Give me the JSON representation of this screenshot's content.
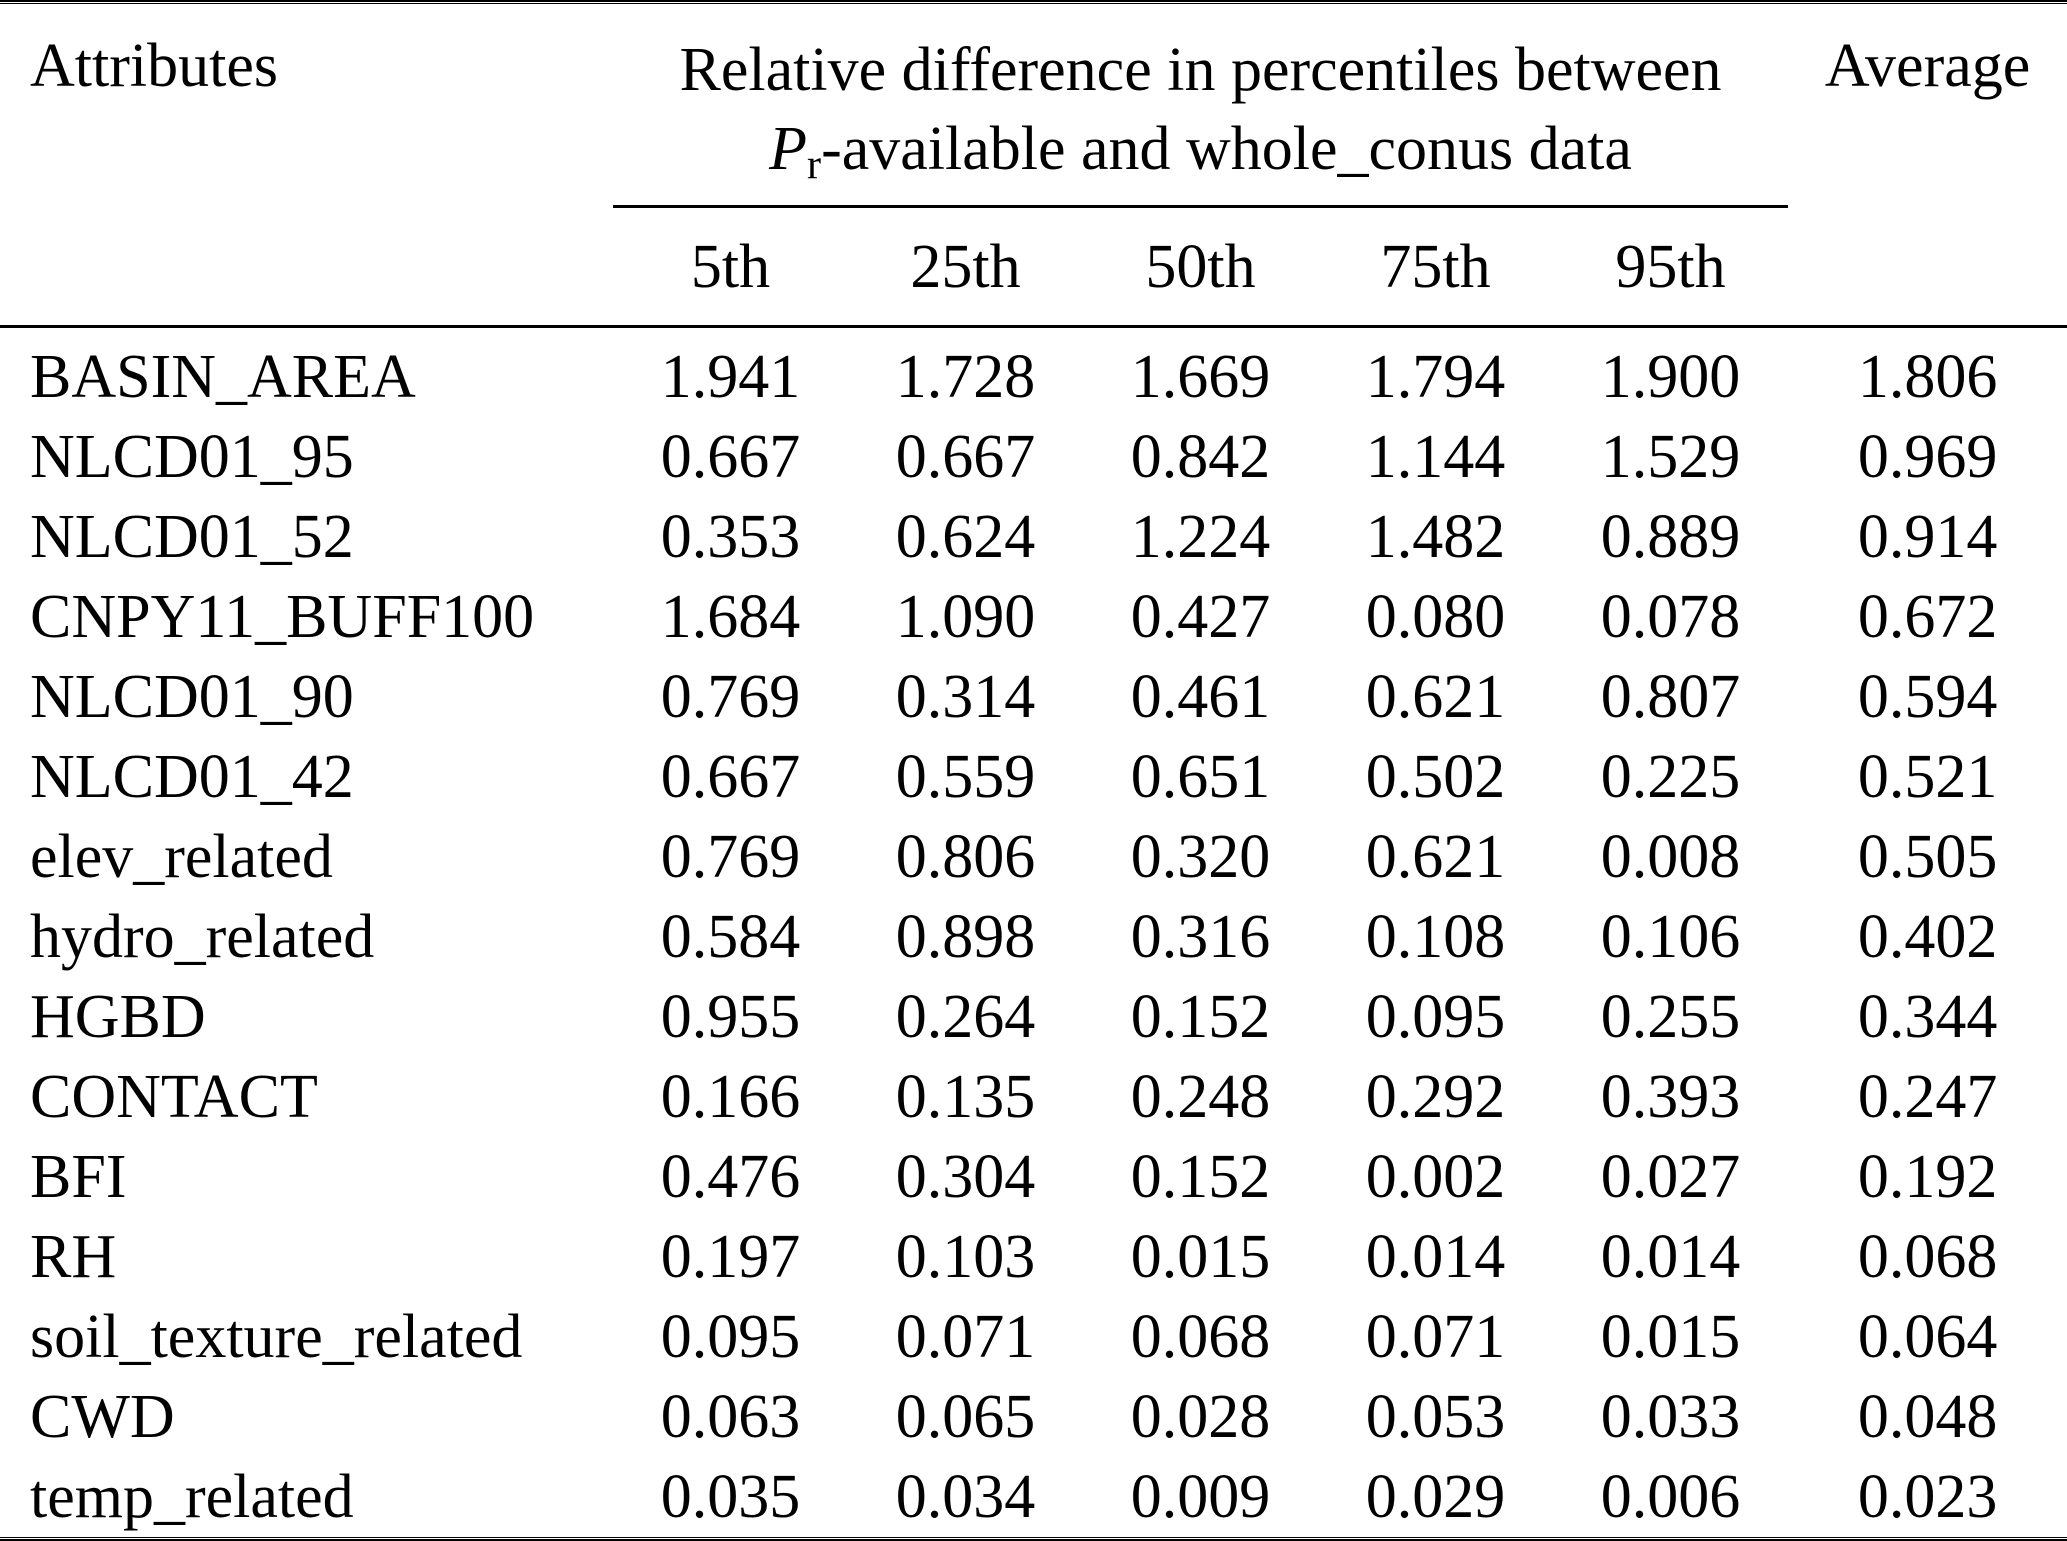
{
  "table": {
    "type": "table",
    "attributes_header": "Attributes",
    "span_header": {
      "line1": "Relative difference in percentiles between",
      "line2_var": "P",
      "line2_sub": "r",
      "line2_rest": "-available and whole_conus data"
    },
    "average_header": "Average",
    "percentile_headers": [
      "5th",
      "25th",
      "50th",
      "75th",
      "95th"
    ],
    "rows": [
      {
        "attribute": "BASIN_AREA",
        "values": [
          "1.941",
          "1.728",
          "1.669",
          "1.794",
          "1.900"
        ],
        "average": "1.806"
      },
      {
        "attribute": "NLCD01_95",
        "values": [
          "0.667",
          "0.667",
          "0.842",
          "1.144",
          "1.529"
        ],
        "average": "0.969"
      },
      {
        "attribute": "NLCD01_52",
        "values": [
          "0.353",
          "0.624",
          "1.224",
          "1.482",
          "0.889"
        ],
        "average": "0.914"
      },
      {
        "attribute": "CNPY11_BUFF100",
        "values": [
          "1.684",
          "1.090",
          "0.427",
          "0.080",
          "0.078"
        ],
        "average": "0.672"
      },
      {
        "attribute": "NLCD01_90",
        "values": [
          "0.769",
          "0.314",
          "0.461",
          "0.621",
          "0.807"
        ],
        "average": "0.594"
      },
      {
        "attribute": "NLCD01_42",
        "values": [
          "0.667",
          "0.559",
          "0.651",
          "0.502",
          "0.225"
        ],
        "average": "0.521"
      },
      {
        "attribute": "elev_related",
        "values": [
          "0.769",
          "0.806",
          "0.320",
          "0.621",
          "0.008"
        ],
        "average": "0.505"
      },
      {
        "attribute": "hydro_related",
        "values": [
          "0.584",
          "0.898",
          "0.316",
          "0.108",
          "0.106"
        ],
        "average": "0.402"
      },
      {
        "attribute": "HGBD",
        "values": [
          "0.955",
          "0.264",
          "0.152",
          "0.095",
          "0.255"
        ],
        "average": "0.344"
      },
      {
        "attribute": "CONTACT",
        "values": [
          "0.166",
          "0.135",
          "0.248",
          "0.292",
          "0.393"
        ],
        "average": "0.247"
      },
      {
        "attribute": "BFI",
        "values": [
          "0.476",
          "0.304",
          "0.152",
          "0.002",
          "0.027"
        ],
        "average": "0.192"
      },
      {
        "attribute": "RH",
        "values": [
          "0.197",
          "0.103",
          "0.015",
          "0.014",
          "0.014"
        ],
        "average": "0.068"
      },
      {
        "attribute": "soil_texture_related",
        "values": [
          "0.095",
          "0.071",
          "0.068",
          "0.071",
          "0.015"
        ],
        "average": "0.064"
      },
      {
        "attribute": "CWD",
        "values": [
          "0.063",
          "0.065",
          "0.028",
          "0.053",
          "0.033"
        ],
        "average": "0.048"
      },
      {
        "attribute": "temp_related",
        "values": [
          "0.035",
          "0.034",
          "0.009",
          "0.029",
          "0.006"
        ],
        "average": "0.023"
      }
    ]
  }
}
